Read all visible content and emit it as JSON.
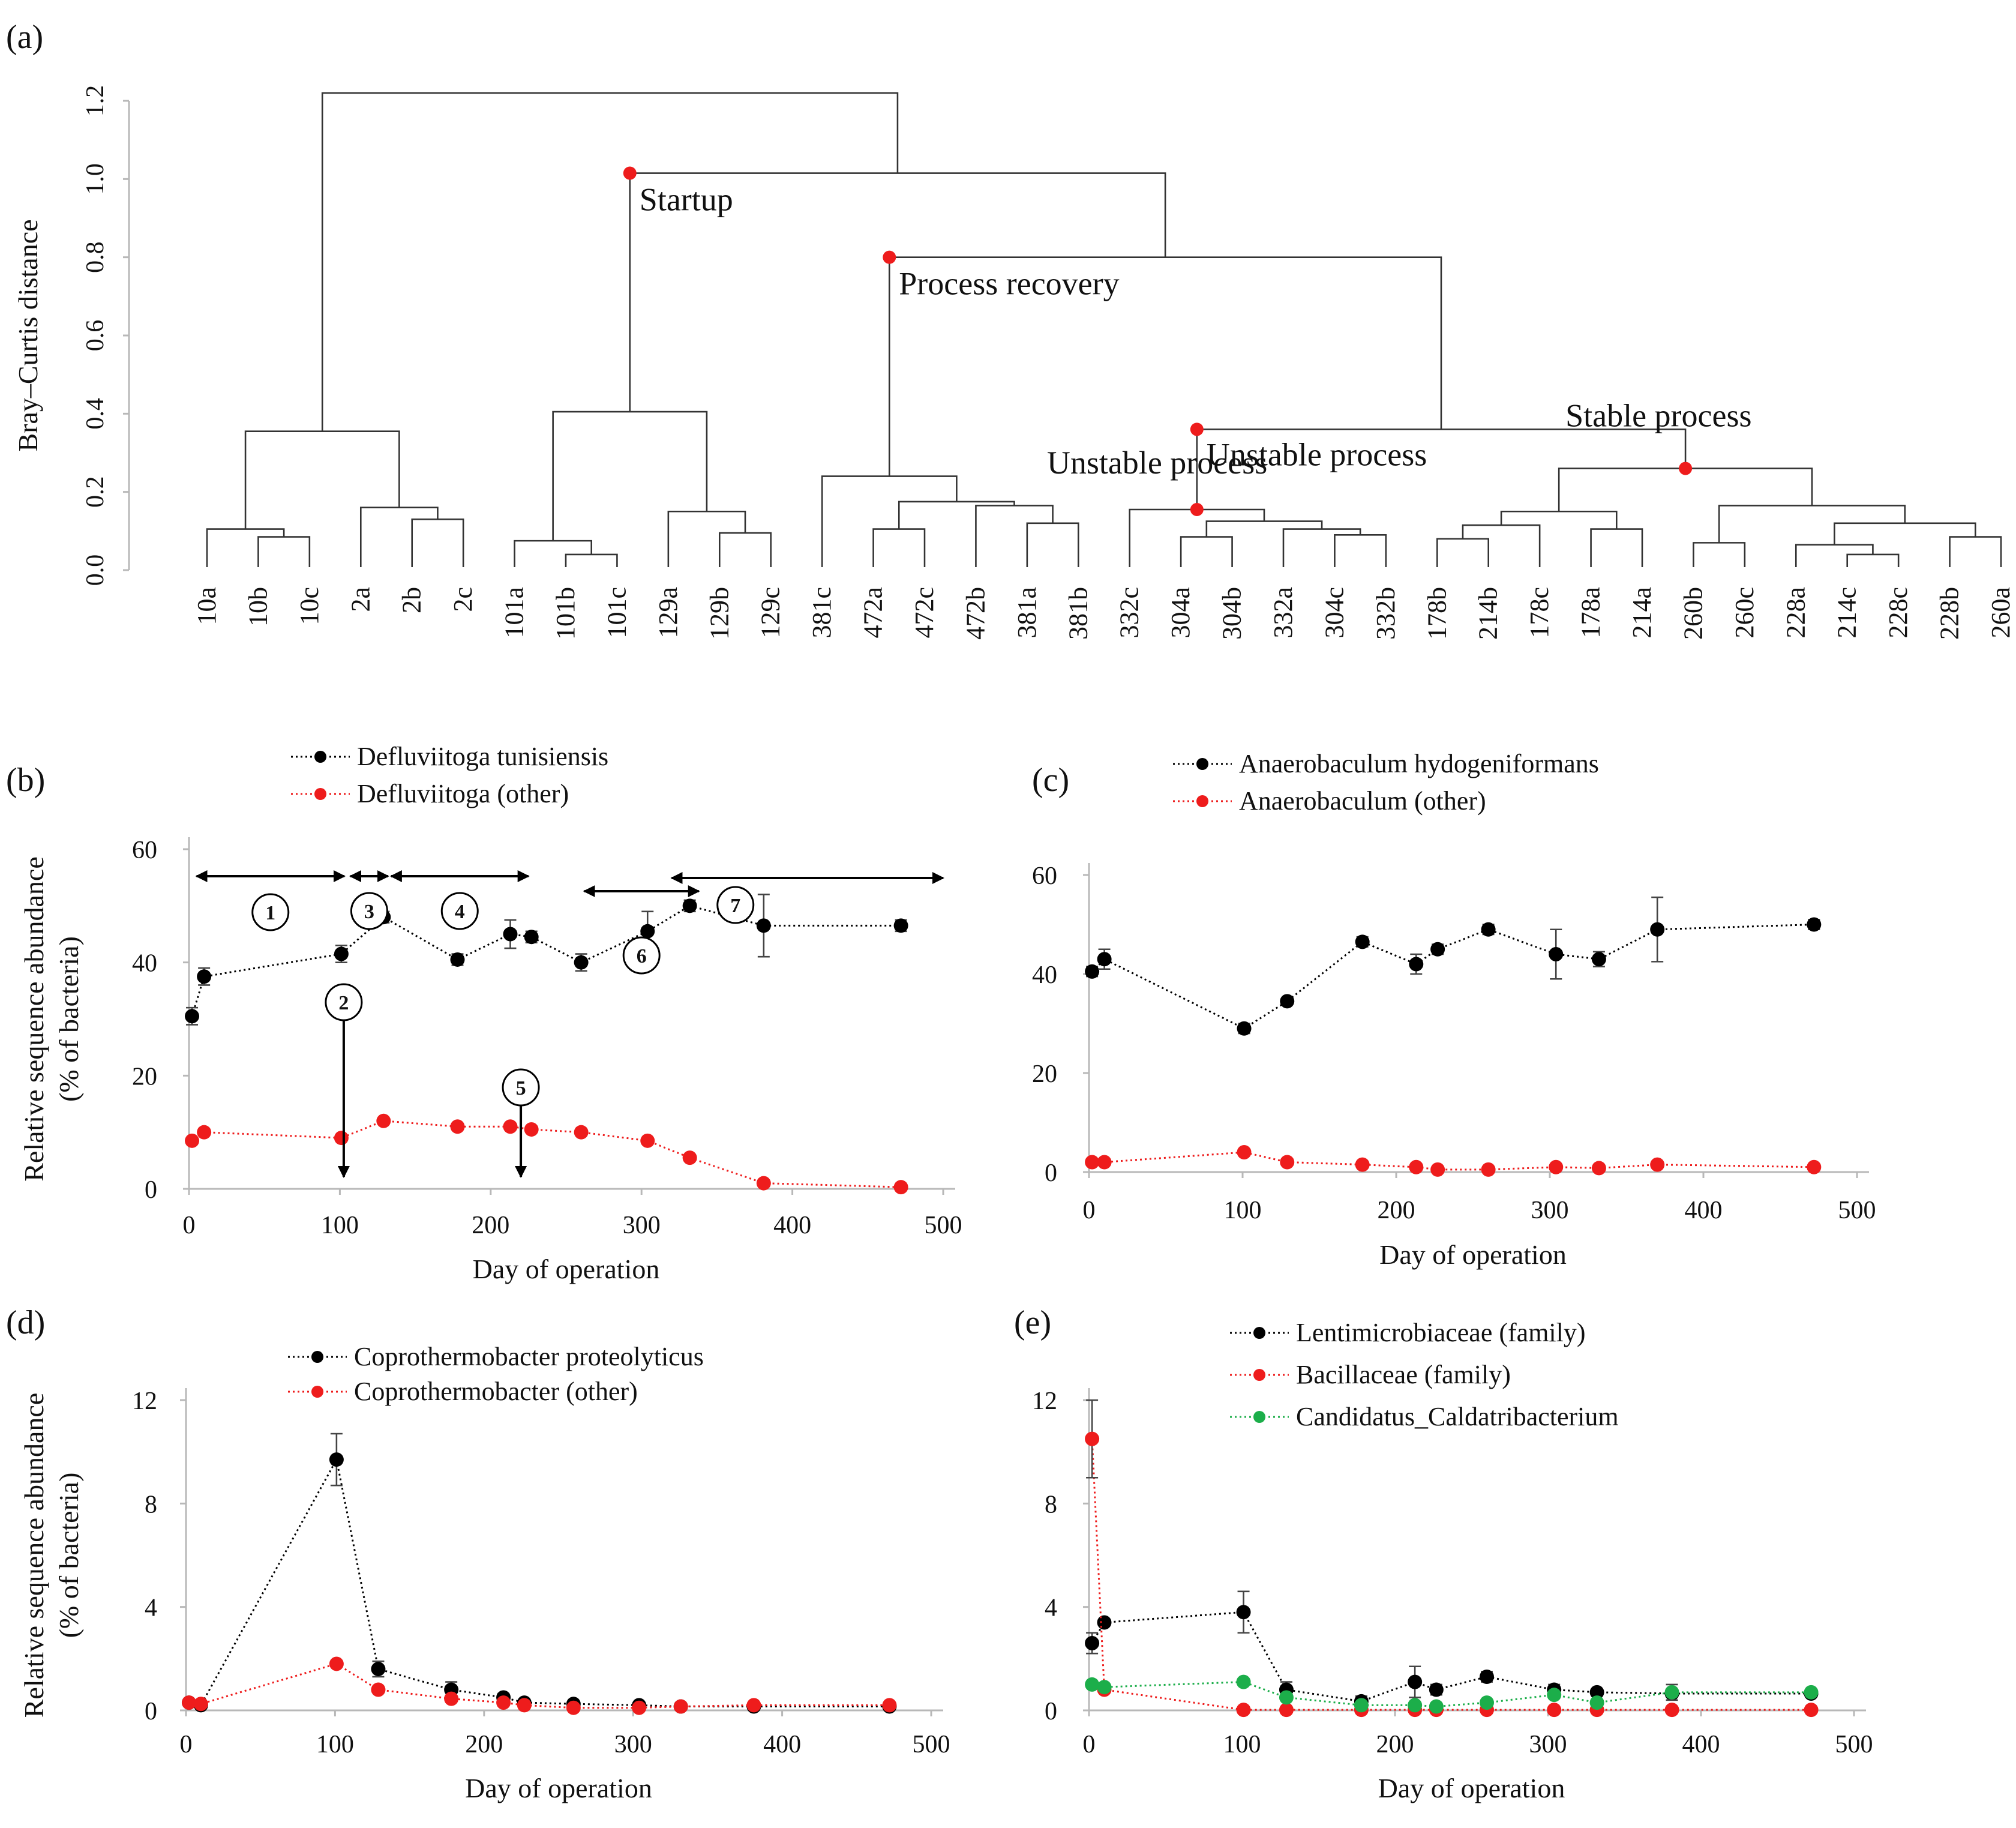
{
  "colors": {
    "black": "#000000",
    "red": "#ee1c1c",
    "green": "#1cae4a",
    "line": "#333333",
    "axis": "#b8b8b8"
  },
  "panels": {
    "a": "(a)",
    "b": "(b)",
    "c": "(c)",
    "d": "(d)",
    "e": "(e)"
  },
  "chart_data": [
    {
      "id": "a",
      "type": "dendrogram",
      "ylabel": "Bray–Curtis distance",
      "ylim": [
        0,
        1.2
      ],
      "yticks": [
        "0.0",
        "0.2",
        "0.4",
        "0.6",
        "0.8",
        "1.0",
        "1.2"
      ],
      "leaves": [
        "10a",
        "10b",
        "10c",
        "2a",
        "2b",
        "2c",
        "101a",
        "101b",
        "101c",
        "129a",
        "129b",
        "129c",
        "381c",
        "472a",
        "472c",
        "472b",
        "381a",
        "381b",
        "332c",
        "304a",
        "304b",
        "332a",
        "304c",
        "332b",
        "178b",
        "214b",
        "178c",
        "178a",
        "214a",
        "260b",
        "260c",
        "228a",
        "214c",
        "228c",
        "228b",
        "260a"
      ],
      "merges": [
        [
          1,
          2,
          0.085
        ],
        [
          0,
          36,
          0.105
        ],
        [
          4,
          5,
          0.13
        ],
        [
          3,
          38,
          0.16
        ],
        [
          37,
          39,
          0.355
        ],
        [
          7,
          8,
          0.04
        ],
        [
          6,
          41,
          0.075
        ],
        [
          10,
          11,
          0.095
        ],
        [
          9,
          43,
          0.15
        ],
        [
          42,
          44,
          0.405
        ],
        [
          13,
          14,
          0.105
        ],
        [
          16,
          17,
          0.12
        ],
        [
          15,
          47,
          0.165
        ],
        [
          46,
          48,
          0.175
        ],
        [
          12,
          49,
          0.24
        ],
        [
          22,
          23,
          0.09
        ],
        [
          19,
          20,
          0.085
        ],
        [
          21,
          51,
          0.105
        ],
        [
          52,
          53,
          0.125
        ],
        [
          18,
          54,
          0.155
        ],
        [
          24,
          25,
          0.08
        ],
        [
          27,
          28,
          0.105
        ],
        [
          26,
          56,
          0.115
        ],
        [
          57,
          58,
          0.15
        ],
        [
          33,
          32,
          0.04
        ],
        [
          31,
          60,
          0.065
        ],
        [
          34,
          35,
          0.085
        ],
        [
          61,
          62,
          0.12
        ],
        [
          29,
          30,
          0.07
        ],
        [
          64,
          63,
          0.165
        ],
        [
          59,
          65,
          0.26
        ],
        [
          55,
          66,
          0.36
        ],
        [
          50,
          67,
          0.8
        ],
        [
          45,
          68,
          1.015
        ],
        [
          40,
          69,
          1.22
        ]
      ],
      "clusters": [
        {
          "label": "Startup",
          "node": 69
        },
        {
          "label": "Process recovery",
          "node": 68
        },
        {
          "label": "Unstable process",
          "node": 67
        },
        {
          "label": "Unstable process",
          "node": 55
        },
        {
          "label": "Stable process",
          "node": 66
        }
      ]
    },
    {
      "id": "b",
      "type": "line",
      "xlabel": "Day of operation",
      "ylabel": [
        "Relative sequence abundance",
        "(% of bacteria)"
      ],
      "xlim": [
        0,
        500
      ],
      "ylim": [
        0,
        60
      ],
      "xticks": [
        "0",
        "100",
        "200",
        "300",
        "400",
        "500"
      ],
      "yticks": [
        "0",
        "20",
        "40",
        "60"
      ],
      "series": [
        {
          "name": "Defluviitoga tunisiensis",
          "color": "black",
          "x": [
            2,
            10,
            101,
            129,
            178,
            213,
            227,
            260,
            304,
            332,
            381,
            472
          ],
          "y": [
            30.5,
            37.5,
            41.5,
            48,
            40.5,
            45,
            44.5,
            40,
            45.5,
            50,
            46.5,
            46.5
          ],
          "err": [
            1.5,
            1.5,
            1.5,
            1,
            1,
            2.5,
            1,
            1.5,
            3.5,
            1,
            5.5,
            1
          ]
        },
        {
          "name": "Defluviitoga (other)",
          "color": "red",
          "x": [
            2,
            10,
            101,
            129,
            178,
            213,
            227,
            260,
            304,
            332,
            381,
            472
          ],
          "y": [
            8.5,
            10,
            9,
            12,
            11,
            11,
            10.5,
            10,
            8.5,
            5.5,
            1,
            0.3
          ],
          "err": [
            0,
            0,
            0,
            0,
            0,
            0,
            0,
            0,
            0,
            0,
            0,
            0
          ]
        }
      ],
      "phases": [
        {
          "label": "1",
          "from": 5,
          "to": 103
        },
        {
          "label": "3",
          "from": 107,
          "to": 132
        },
        {
          "label": "4",
          "from": 134,
          "to": 225
        },
        {
          "label": "6",
          "from": 262,
          "to": 338
        },
        {
          "label": "7",
          "from": 320,
          "to": 500
        }
      ],
      "events": [
        {
          "label": "2",
          "day": 101
        },
        {
          "label": "5",
          "day": 220
        }
      ]
    },
    {
      "id": "c",
      "type": "line",
      "xlabel": "Day of operation",
      "ylabel": [],
      "xlim": [
        0,
        500
      ],
      "ylim": [
        0,
        60
      ],
      "xticks": [
        "0",
        "100",
        "200",
        "300",
        "400",
        "500"
      ],
      "yticks": [
        "0",
        "20",
        "40",
        "60"
      ],
      "series": [
        {
          "name": "Anaerobaculum hydogeniformans",
          "color": "black",
          "x": [
            2,
            10,
            101,
            129,
            178,
            213,
            227,
            260,
            304,
            332,
            370,
            472
          ],
          "y": [
            40.5,
            43,
            29,
            34.5,
            46.5,
            42,
            45,
            49,
            44,
            43,
            49,
            50
          ],
          "err": [
            1,
            2,
            1,
            0.5,
            1,
            2,
            1,
            1,
            5,
            1.5,
            6.5,
            1
          ]
        },
        {
          "name": "Anaerobaculum (other)",
          "color": "red",
          "x": [
            2,
            10,
            101,
            129,
            178,
            213,
            227,
            260,
            304,
            332,
            370,
            472
          ],
          "y": [
            2,
            2,
            4,
            2,
            1.5,
            1,
            0.5,
            0.5,
            1,
            0.8,
            1.5,
            1
          ],
          "err": [
            0,
            0,
            0,
            0,
            0,
            0,
            0,
            0,
            0,
            0,
            0,
            0
          ]
        }
      ]
    },
    {
      "id": "d",
      "type": "line",
      "xlabel": "Day of operation",
      "ylabel": [
        "Relative sequence abundance",
        "(% of bacteria)"
      ],
      "xlim": [
        0,
        500
      ],
      "ylim": [
        0,
        12
      ],
      "xticks": [
        "0",
        "100",
        "200",
        "300",
        "400",
        "500"
      ],
      "yticks": [
        "0",
        "4",
        "8",
        "12"
      ],
      "series": [
        {
          "name": "Coprothermobacter proteolyticus",
          "color": "black",
          "x": [
            2,
            10,
            101,
            129,
            178,
            213,
            227,
            260,
            304,
            332,
            381,
            472
          ],
          "y": [
            0.3,
            0.2,
            9.7,
            1.6,
            0.8,
            0.5,
            0.3,
            0.25,
            0.2,
            0.15,
            0.15,
            0.15
          ],
          "err": [
            0,
            0,
            1,
            0.3,
            0.3,
            0.15,
            0.1,
            0,
            0,
            0,
            0,
            0
          ]
        },
        {
          "name": "Coprothermobacter (other)",
          "color": "red",
          "x": [
            2,
            10,
            101,
            129,
            178,
            213,
            227,
            260,
            304,
            332,
            381,
            472
          ],
          "y": [
            0.3,
            0.25,
            1.8,
            0.8,
            0.45,
            0.3,
            0.2,
            0.1,
            0.1,
            0.15,
            0.2,
            0.2
          ],
          "err": [
            0,
            0,
            0,
            0,
            0,
            0,
            0,
            0,
            0,
            0,
            0,
            0
          ]
        }
      ]
    },
    {
      "id": "e",
      "type": "line",
      "xlabel": "Day of operation",
      "ylabel": [],
      "xlim": [
        0,
        500
      ],
      "ylim": [
        0,
        12
      ],
      "xticks": [
        "0",
        "100",
        "200",
        "300",
        "400",
        "500"
      ],
      "yticks": [
        "0",
        "4",
        "8",
        "12"
      ],
      "series": [
        {
          "name": "Lentimicrobiaceae (family)",
          "color": "black",
          "x": [
            2,
            10,
            101,
            129,
            178,
            213,
            227,
            260,
            304,
            332,
            381,
            472
          ],
          "y": [
            2.6,
            3.4,
            3.8,
            0.8,
            0.35,
            1.1,
            0.8,
            1.3,
            0.8,
            0.7,
            0.65,
            0.65
          ],
          "err": [
            0.4,
            0,
            0.8,
            0.3,
            0.2,
            0.6,
            0.2,
            0.2,
            0.2,
            0,
            0,
            0
          ]
        },
        {
          "name": "Bacillaceae (family)",
          "color": "red",
          "x": [
            2,
            10,
            101,
            129,
            178,
            213,
            227,
            260,
            304,
            332,
            381,
            472
          ],
          "y": [
            10.5,
            0.8,
            0.02,
            0.02,
            0.02,
            0.02,
            0.02,
            0.02,
            0.02,
            0.02,
            0.02,
            0.02
          ],
          "err": [
            1.5,
            0,
            0,
            0,
            0,
            0,
            0,
            0,
            0,
            0,
            0,
            0
          ]
        },
        {
          "name": "Candidatus_Caldatribacterium",
          "color": "green",
          "x": [
            2,
            10,
            101,
            129,
            178,
            213,
            227,
            260,
            304,
            332,
            381,
            472
          ],
          "y": [
            1,
            0.9,
            1.1,
            0.5,
            0.2,
            0.2,
            0.15,
            0.3,
            0.6,
            0.3,
            0.7,
            0.7
          ],
          "err": [
            0,
            0,
            0,
            0,
            0,
            0,
            0,
            0,
            0,
            0,
            0.3,
            0
          ]
        }
      ]
    }
  ]
}
